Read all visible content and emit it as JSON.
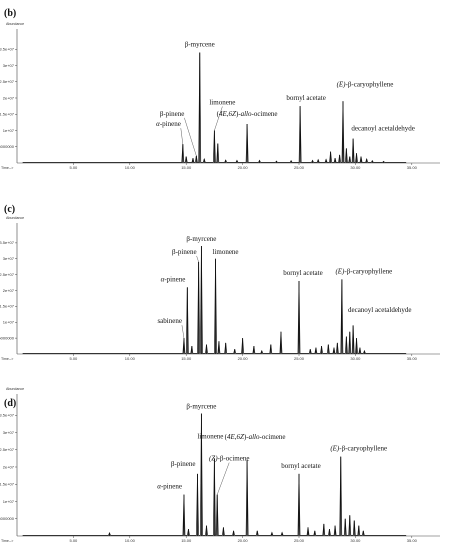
{
  "chart_data": [
    {
      "type": "line",
      "panel_label": "(b)",
      "ylabel": "Abundance",
      "xlabel": "Time-->",
      "xlim": [
        0,
        37.5
      ],
      "ylim": [
        0,
        40000000
      ],
      "yticks": [
        "5000000",
        "1e+07",
        "1.5e+07",
        "2e+07",
        "2.5e+07",
        "3e+07",
        "3.5e+07"
      ],
      "yticks_values": [
        5000000,
        10000000,
        15000000,
        20000000,
        25000000,
        30000000,
        35000000
      ],
      "xticks": [
        "5.00",
        "10.00",
        "15.00",
        "20.00",
        "25.00",
        "30.00",
        "35.00"
      ],
      "xticks_values": [
        5,
        10,
        15,
        20,
        25,
        30,
        35
      ],
      "peaks": [
        {
          "x": 14.7,
          "y": 5800000,
          "label": "α-pinene"
        },
        {
          "x": 15.0,
          "y": 2000000
        },
        {
          "x": 15.6,
          "y": 1500000
        },
        {
          "x": 15.9,
          "y": 2200000,
          "label": "β-pinene"
        },
        {
          "x": 16.2,
          "y": 34000000,
          "label": "β-myrcene"
        },
        {
          "x": 16.6,
          "y": 1200000
        },
        {
          "x": 17.5,
          "y": 10000000,
          "label": "limonene"
        },
        {
          "x": 17.8,
          "y": 6000000
        },
        {
          "x": 18.5,
          "y": 900000
        },
        {
          "x": 19.5,
          "y": 800000
        },
        {
          "x": 20.4,
          "y": 12000000,
          "label": "(4E,6Z)-allo-ocimene"
        },
        {
          "x": 21.5,
          "y": 800000
        },
        {
          "x": 23.0,
          "y": 600000
        },
        {
          "x": 24.3,
          "y": 700000
        },
        {
          "x": 25.1,
          "y": 17500000,
          "label": "bornyl acetate"
        },
        {
          "x": 26.2,
          "y": 800000
        },
        {
          "x": 26.7,
          "y": 1000000
        },
        {
          "x": 27.4,
          "y": 1100000
        },
        {
          "x": 27.8,
          "y": 3500000
        },
        {
          "x": 28.2,
          "y": 1500000
        },
        {
          "x": 28.6,
          "y": 2500000
        },
        {
          "x": 28.9,
          "y": 19000000,
          "label": "(E)-β-caryophyllene"
        },
        {
          "x": 29.2,
          "y": 4500000
        },
        {
          "x": 29.5,
          "y": 2000000
        },
        {
          "x": 29.8,
          "y": 7500000,
          "label": "decanoyl acetaldehyde"
        },
        {
          "x": 30.1,
          "y": 3000000
        },
        {
          "x": 30.5,
          "y": 2000000
        },
        {
          "x": 31.0,
          "y": 1200000
        },
        {
          "x": 31.5,
          "y": 700000
        },
        {
          "x": 32.5,
          "y": 500000
        }
      ]
    },
    {
      "type": "line",
      "panel_label": "(c)",
      "ylabel": "Abundance",
      "xlabel": "Time-->",
      "xlim": [
        0,
        37.5
      ],
      "ylim": [
        0,
        40000000
      ],
      "yticks": [
        "5000000",
        "1e+07",
        "1.5e+07",
        "2e+07",
        "2.5e+07",
        "3e+07",
        "3.5e+07"
      ],
      "yticks_values": [
        5000000,
        10000000,
        15000000,
        20000000,
        25000000,
        30000000,
        35000000
      ],
      "xticks": [
        "5.00",
        "10.00",
        "15.00",
        "20.00",
        "25.00",
        "30.00",
        "35.00"
      ],
      "xticks_values": [
        5,
        10,
        15,
        20,
        25,
        30,
        35
      ],
      "peaks": [
        {
          "x": 14.8,
          "y": 5000000,
          "label": "sabinene"
        },
        {
          "x": 15.1,
          "y": 21000000,
          "label": "α-pinene"
        },
        {
          "x": 15.5,
          "y": 2500000
        },
        {
          "x": 16.1,
          "y": 29000000,
          "label": "β-pinene"
        },
        {
          "x": 16.35,
          "y": 34000000,
          "label": "β-myrcene"
        },
        {
          "x": 16.8,
          "y": 3000000
        },
        {
          "x": 17.6,
          "y": 30000000,
          "label": "limonene"
        },
        {
          "x": 17.9,
          "y": 4000000
        },
        {
          "x": 18.5,
          "y": 3500000
        },
        {
          "x": 19.3,
          "y": 1500000
        },
        {
          "x": 20.0,
          "y": 5000000
        },
        {
          "x": 21.0,
          "y": 2500000
        },
        {
          "x": 21.7,
          "y": 1000000
        },
        {
          "x": 22.5,
          "y": 3000000
        },
        {
          "x": 23.4,
          "y": 7000000
        },
        {
          "x": 25.0,
          "y": 23000000,
          "label": "bornyl acetate"
        },
        {
          "x": 26.0,
          "y": 1500000
        },
        {
          "x": 26.5,
          "y": 2000000
        },
        {
          "x": 27.0,
          "y": 2500000
        },
        {
          "x": 27.6,
          "y": 3000000
        },
        {
          "x": 28.1,
          "y": 2000000
        },
        {
          "x": 28.4,
          "y": 3500000
        },
        {
          "x": 28.8,
          "y": 23500000,
          "label": "(E)-β-caryophyllene"
        },
        {
          "x": 29.2,
          "y": 5500000
        },
        {
          "x": 29.5,
          "y": 7000000,
          "label": "decanoyl acetaldehyde"
        },
        {
          "x": 29.8,
          "y": 9000000
        },
        {
          "x": 30.1,
          "y": 5000000
        },
        {
          "x": 30.4,
          "y": 2000000
        },
        {
          "x": 30.8,
          "y": 1000000
        }
      ]
    },
    {
      "type": "line",
      "panel_label": "(d)",
      "ylabel": "Abundance",
      "xlabel": "Time-->",
      "xlim": [
        0,
        37.5
      ],
      "ylim": [
        0,
        40000000
      ],
      "yticks": [
        "5000000",
        "1e+07",
        "1.5e+07",
        "2e+07",
        "2.5e+07",
        "3e+07",
        "3.5e+07"
      ],
      "yticks_values": [
        5000000,
        10000000,
        15000000,
        20000000,
        25000000,
        30000000,
        35000000
      ],
      "xticks": [
        "5.00",
        "10.00",
        "15.00",
        "20.00",
        "25.00",
        "30.00",
        "35.00"
      ],
      "xticks_values": [
        5,
        10,
        15,
        20,
        25,
        30,
        35
      ],
      "peaks": [
        {
          "x": 8.2,
          "y": 900000
        },
        {
          "x": 14.8,
          "y": 12000000,
          "label": "α-pinene"
        },
        {
          "x": 15.2,
          "y": 2000000
        },
        {
          "x": 16.0,
          "y": 18000000,
          "label": "β-pinene"
        },
        {
          "x": 16.35,
          "y": 35500000,
          "label": "β-myrcene"
        },
        {
          "x": 16.8,
          "y": 3000000
        },
        {
          "x": 17.5,
          "y": 22500000,
          "label": "limonene"
        },
        {
          "x": 17.75,
          "y": 12000000,
          "label": "(Z)-β-ocimene"
        },
        {
          "x": 18.3,
          "y": 2500000
        },
        {
          "x": 19.2,
          "y": 1500000
        },
        {
          "x": 20.4,
          "y": 22000000,
          "label": "(4E,6Z)-allo-ocimene"
        },
        {
          "x": 21.3,
          "y": 1500000
        },
        {
          "x": 22.6,
          "y": 1000000
        },
        {
          "x": 23.5,
          "y": 1000000
        },
        {
          "x": 25.0,
          "y": 18000000,
          "label": "bornyl acetate"
        },
        {
          "x": 25.8,
          "y": 2500000
        },
        {
          "x": 26.4,
          "y": 1500000
        },
        {
          "x": 27.2,
          "y": 3500000
        },
        {
          "x": 27.7,
          "y": 2000000
        },
        {
          "x": 28.2,
          "y": 3000000
        },
        {
          "x": 28.7,
          "y": 23000000,
          "label": "(E)-β-caryophyllene"
        },
        {
          "x": 29.1,
          "y": 5000000
        },
        {
          "x": 29.5,
          "y": 6000000
        },
        {
          "x": 29.9,
          "y": 4500000
        },
        {
          "x": 30.3,
          "y": 3000000
        },
        {
          "x": 30.7,
          "y": 1500000
        }
      ]
    }
  ]
}
